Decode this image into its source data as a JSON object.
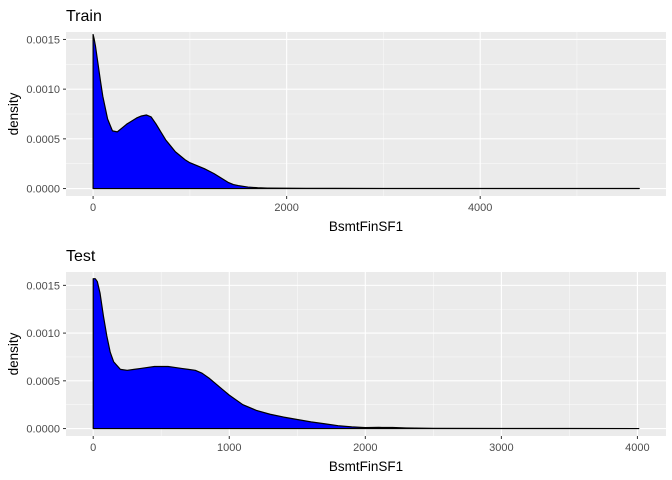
{
  "chart_data": [
    {
      "type": "area",
      "title": "Train",
      "xlabel": "BsmtFinSF1",
      "ylabel": "density",
      "fill_color": "#0000FF",
      "line_color": "#000000",
      "panel_background": "#EBEBEB",
      "grid": true,
      "legend": "none",
      "xlim": [
        -280,
        5920
      ],
      "ylim": [
        -7.5e-05,
        0.001575
      ],
      "x_ticks": [
        0,
        2000,
        4000
      ],
      "x_tick_labels": [
        "0",
        "2000",
        "4000"
      ],
      "y_ticks": [
        0,
        0.0005,
        0.001,
        0.0015
      ],
      "y_tick_labels": [
        "0.0000",
        "0.0005",
        "0.0010",
        "0.0015"
      ],
      "x": [
        0,
        10,
        25,
        50,
        75,
        100,
        150,
        200,
        250,
        300,
        350,
        400,
        450,
        500,
        550,
        600,
        650,
        700,
        750,
        800,
        850,
        900,
        950,
        1000,
        1050,
        1100,
        1150,
        1200,
        1250,
        1300,
        1350,
        1400,
        1450,
        1500,
        1600,
        1700,
        1800,
        2000,
        2200,
        2500,
        3000,
        3500,
        4000,
        4500,
        5000,
        5644
      ],
      "y": [
        0.00155,
        0.00151,
        0.00143,
        0.00126,
        0.00109,
        0.00093,
        0.0007,
        0.00058,
        0.00057,
        0.00061,
        0.00065,
        0.00068,
        0.00071,
        0.00073,
        0.00074,
        0.00072,
        0.00065,
        0.00057,
        0.00049,
        0.00043,
        0.00037,
        0.00033,
        0.00029,
        0.00026,
        0.00024,
        0.00022,
        0.0002,
        0.000175,
        0.00015,
        0.00012,
        9e-05,
        6e-05,
        4e-05,
        3e-05,
        1.5e-05,
        8e-06,
        5e-06,
        3e-06,
        2e-06,
        1.5e-06,
        1e-06,
        8e-07,
        5e-07,
        4e-07,
        3e-07,
        2e-07
      ]
    },
    {
      "type": "area",
      "title": "Test",
      "xlabel": "BsmtFinSF1",
      "ylabel": "density",
      "fill_color": "#0000FF",
      "line_color": "#000000",
      "panel_background": "#EBEBEB",
      "grid": true,
      "legend": "none",
      "xlim": [
        -200,
        4210
      ],
      "ylim": [
        -7.8e-05,
        0.00164
      ],
      "x_ticks": [
        0,
        1000,
        2000,
        3000,
        4000
      ],
      "x_tick_labels": [
        "0",
        "1000",
        "2000",
        "3000",
        "4000"
      ],
      "y_ticks": [
        0,
        0.0005,
        0.001,
        0.0015
      ],
      "y_tick_labels": [
        "0.0000",
        "0.0005",
        "0.0010",
        "0.0015"
      ],
      "x": [
        0,
        15,
        30,
        50,
        75,
        100,
        125,
        150,
        200,
        250,
        300,
        350,
        400,
        450,
        500,
        550,
        600,
        650,
        700,
        750,
        800,
        850,
        900,
        950,
        1000,
        1100,
        1200,
        1300,
        1400,
        1500,
        1600,
        1700,
        1800,
        1900,
        2000,
        2100,
        2200,
        2300,
        2500,
        3000,
        3500,
        4010
      ],
      "y": [
        0.00157,
        0.00157,
        0.00154,
        0.00142,
        0.00118,
        0.00097,
        0.0008,
        0.0007,
        0.00062,
        0.00061,
        0.00062,
        0.00063,
        0.00064,
        0.00065,
        0.00065,
        0.00065,
        0.00064,
        0.00063,
        0.00062,
        0.00061,
        0.00058,
        0.00053,
        0.00047,
        0.00041,
        0.00035,
        0.00025,
        0.00019,
        0.00015,
        0.00012,
        9.5e-05,
        7e-05,
        5e-05,
        3e-05,
        1.8e-05,
        1e-05,
        1.2e-05,
        1.1e-05,
        6e-06,
        2e-06,
        1e-06,
        5e-07,
        2e-07
      ]
    }
  ]
}
